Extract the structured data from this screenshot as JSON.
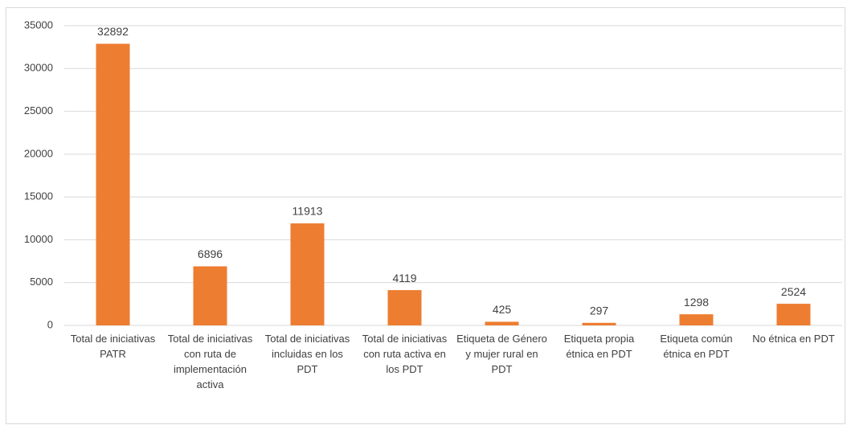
{
  "chart_data": {
    "type": "bar",
    "categories": [
      "Total de iniciativas PATR",
      "Total de iniciativas con ruta de implementación activa",
      "Total de iniciativas incluidas en los PDT",
      "Total de iniciativas con ruta activa en los PDT",
      "Etiqueta de Género y mujer rural en PDT",
      "Etiqueta propia étnica en PDT",
      "Etiqueta común étnica en PDT",
      "No étnica en PDT"
    ],
    "values": [
      32892,
      6896,
      11913,
      4119,
      425,
      297,
      1298,
      2524
    ],
    "color": "#ed7d31",
    "ylim": [
      0,
      35000
    ],
    "yticks": [
      0,
      5000,
      10000,
      15000,
      20000,
      25000,
      30000,
      35000
    ],
    "grid": true
  }
}
